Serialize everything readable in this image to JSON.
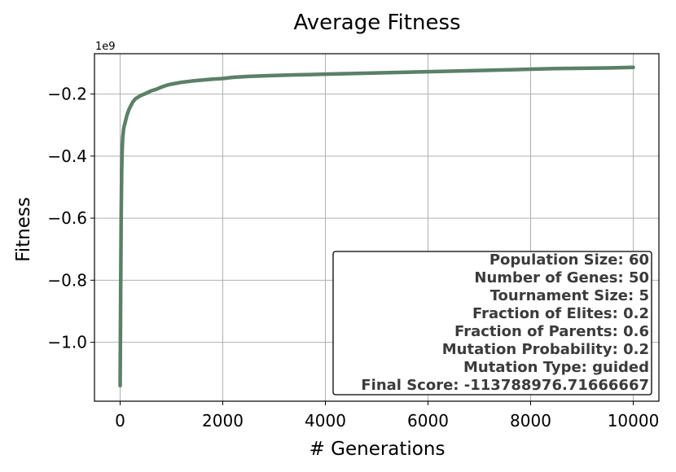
{
  "chart_data": {
    "type": "line",
    "title": "Average Fitness",
    "xlabel": "# Generations",
    "ylabel": "Fitness",
    "y_offset_label": "1e9",
    "xlim": [
      -500,
      10500
    ],
    "ylim": [
      -1.19,
      -0.07
    ],
    "x_ticks": [
      0,
      2000,
      4000,
      6000,
      8000,
      10000
    ],
    "x_tick_labels": [
      "0",
      "2000",
      "4000",
      "6000",
      "8000",
      "10000"
    ],
    "y_ticks": [
      -1.0,
      -0.8,
      -0.6,
      -0.4,
      -0.2
    ],
    "y_tick_labels": [
      "−1.0",
      "−0.8",
      "−0.6",
      "−0.4",
      "−0.2"
    ],
    "grid": true,
    "line_color": "#5b8068",
    "series": [
      {
        "x": [
          0,
          10,
          20,
          30,
          40,
          50,
          70,
          100,
          130,
          160,
          200,
          250,
          300,
          400,
          500,
          600,
          700,
          800,
          900,
          1000,
          1200,
          1400,
          1600,
          1800,
          2000,
          2200,
          2500,
          3000,
          3500,
          4000,
          4500,
          5000,
          5500,
          6000,
          6500,
          7000,
          7500,
          8000,
          8500,
          9000,
          9500,
          10000
        ],
        "y": [
          -1.14,
          -0.85,
          -0.6,
          -0.45,
          -0.38,
          -0.34,
          -0.31,
          -0.29,
          -0.27,
          -0.255,
          -0.24,
          -0.225,
          -0.215,
          -0.205,
          -0.198,
          -0.19,
          -0.185,
          -0.178,
          -0.172,
          -0.168,
          -0.162,
          -0.158,
          -0.155,
          -0.152,
          -0.15,
          -0.146,
          -0.143,
          -0.14,
          -0.138,
          -0.136,
          -0.134,
          -0.132,
          -0.13,
          -0.128,
          -0.126,
          -0.124,
          -0.122,
          -0.12,
          -0.118,
          -0.117,
          -0.116,
          -0.114
        ]
      }
    ],
    "legend_position": "lower-right",
    "legend_lines": [
      "Population Size: 60",
      "Number of Genes: 50",
      "Tournament Size: 5",
      "Fraction of Elites: 0.2",
      "Fraction of Parents: 0.6",
      "Mutation Probability: 0.2",
      "Mutation Type: guided",
      "Final Score: -113788976.71666667"
    ]
  }
}
